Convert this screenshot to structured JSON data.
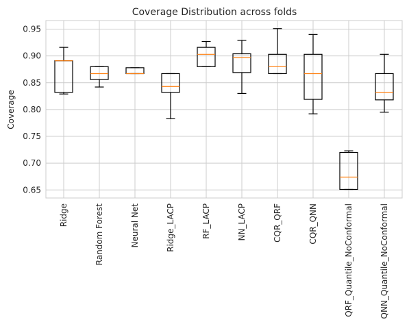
{
  "chart_data": {
    "type": "boxplot",
    "title": "Coverage Distribution across folds",
    "xlabel": "",
    "ylabel": "Coverage",
    "ylim": [
      0.635,
      0.966
    ],
    "yticks": [
      0.65,
      0.7,
      0.75,
      0.8,
      0.85,
      0.9,
      0.95
    ],
    "ytick_labels": [
      "0.65",
      "0.70",
      "0.75",
      "0.80",
      "0.85",
      "0.90",
      "0.95"
    ],
    "grid": true,
    "colors": {
      "box": "#000000",
      "median": "#ff7f0e",
      "grid": "#cccccc"
    },
    "categories": [
      "Ridge",
      "Random Forest",
      "Neural Net",
      "Ridge_LACP",
      "RF_LACP",
      "NN_LACP",
      "CQR_QRF",
      "CQR_QNN",
      "QRF_Quantile_NoConformal",
      "QNN_Quantile_NoConformal"
    ],
    "boxes": [
      {
        "whislo": 0.829,
        "q1": 0.832,
        "med": 0.891,
        "q3": 0.891,
        "whishi": 0.916
      },
      {
        "whislo": 0.842,
        "q1": 0.856,
        "med": 0.867,
        "q3": 0.88,
        "whishi": 0.88
      },
      {
        "whislo": 0.867,
        "q1": 0.867,
        "med": 0.867,
        "q3": 0.878,
        "whishi": 0.878
      },
      {
        "whislo": 0.783,
        "q1": 0.832,
        "med": 0.843,
        "q3": 0.867,
        "whishi": 0.867
      },
      {
        "whislo": 0.88,
        "q1": 0.88,
        "med": 0.903,
        "q3": 0.916,
        "whishi": 0.927
      },
      {
        "whislo": 0.83,
        "q1": 0.869,
        "med": 0.897,
        "q3": 0.904,
        "whishi": 0.929
      },
      {
        "whislo": 0.867,
        "q1": 0.867,
        "med": 0.88,
        "q3": 0.903,
        "whishi": 0.951
      },
      {
        "whislo": 0.792,
        "q1": 0.819,
        "med": 0.867,
        "q3": 0.903,
        "whishi": 0.94
      },
      {
        "whislo": 0.651,
        "q1": 0.651,
        "med": 0.674,
        "q3": 0.72,
        "whishi": 0.723
      },
      {
        "whislo": 0.795,
        "q1": 0.818,
        "med": 0.832,
        "q3": 0.867,
        "whishi": 0.903
      }
    ]
  }
}
